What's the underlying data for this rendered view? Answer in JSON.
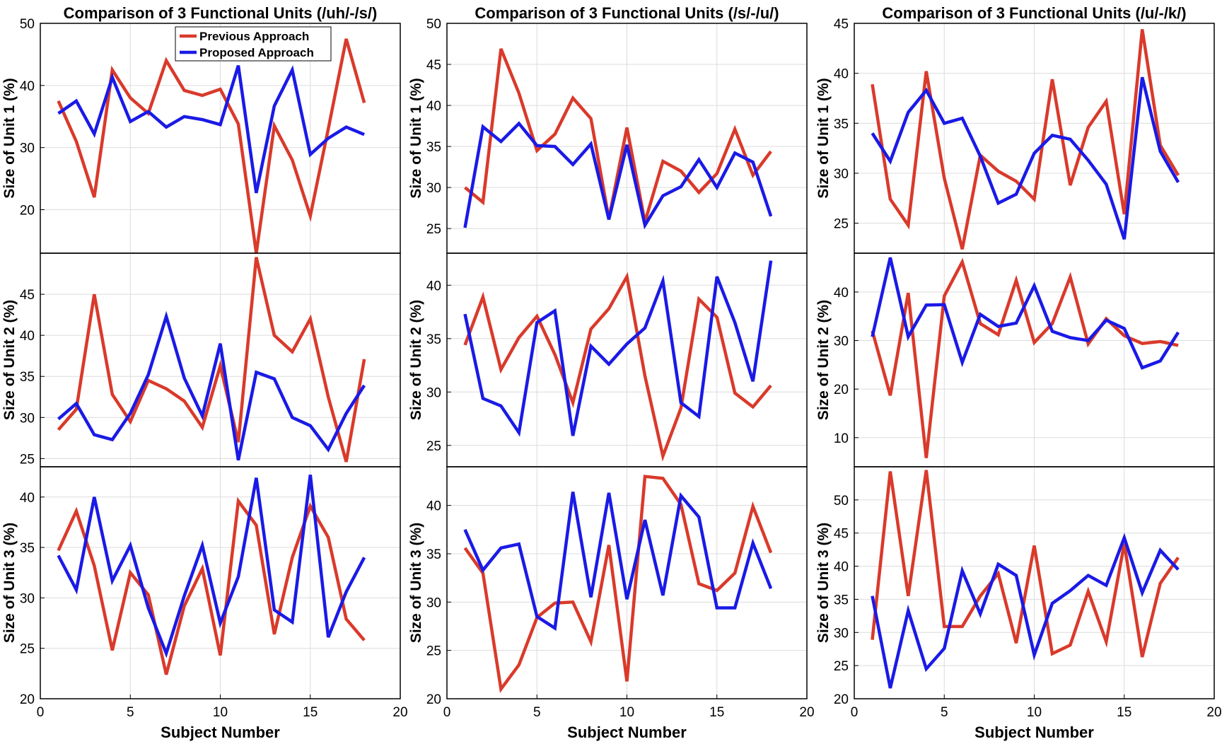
{
  "colors": {
    "previous": "#d93a2b",
    "proposed": "#1a1ae6"
  },
  "chart_data": [
    {
      "type": "line",
      "title": "Comparison of 3 Functional Units (/uh/-/s/)",
      "xlabel": "Subject Number",
      "xlim": [
        0,
        20
      ],
      "xticks": [
        0,
        5,
        10,
        15,
        20
      ],
      "legend": {
        "location": "top-center",
        "entries": [
          "Previous Approach",
          "Proposed Approach"
        ]
      },
      "panels": [
        {
          "ylabel": "Size of Unit 1 (%)",
          "ylim": [
            13,
            50
          ],
          "yticks": [
            20,
            30,
            40,
            50
          ],
          "x": [
            1,
            2,
            3,
            4,
            5,
            6,
            7,
            8,
            9,
            10,
            11,
            12,
            13,
            14,
            15,
            16,
            17,
            18
          ],
          "series": [
            {
              "name": "Previous Approach",
              "values": [
                37.5,
                31,
                22,
                42.5,
                38,
                35.5,
                44,
                39.2,
                38.4,
                39.4,
                33.8,
                13,
                33.5,
                28,
                19,
                33,
                47.5,
                37.2
              ]
            },
            {
              "name": "Proposed Approach",
              "values": [
                35.5,
                37.5,
                32.2,
                41.3,
                34.2,
                35.8,
                33.3,
                35,
                34.5,
                33.7,
                43.2,
                22.7,
                36.7,
                42.5,
                28.9,
                31.5,
                33.3,
                32.1
              ]
            }
          ]
        },
        {
          "ylabel": "Size of Unit 2 (%)",
          "ylim": [
            24,
            50
          ],
          "yticks": [
            25,
            30,
            35,
            40,
            45
          ],
          "x": [
            1,
            2,
            3,
            4,
            5,
            6,
            7,
            8,
            9,
            10,
            11,
            12,
            13,
            14,
            15,
            16,
            17,
            18
          ],
          "series": [
            {
              "name": "Previous Approach",
              "values": [
                28.5,
                31,
                45,
                32.8,
                29.5,
                34.5,
                33.5,
                32,
                28.8,
                36.3,
                27,
                49.5,
                40,
                38,
                42,
                32.5,
                24.6,
                37.1
              ]
            },
            {
              "name": "Proposed Approach",
              "values": [
                29.8,
                31.7,
                27.9,
                27.3,
                30.5,
                35.2,
                42.3,
                34.8,
                30.2,
                39,
                24.8,
                35.5,
                34.7,
                30,
                29,
                26.1,
                30.5,
                33.9
              ]
            }
          ]
        },
        {
          "ylabel": "Size of Unit 3 (%)",
          "ylim": [
            20,
            43
          ],
          "yticks": [
            20,
            25,
            30,
            35,
            40
          ],
          "x": [
            1,
            2,
            3,
            4,
            5,
            6,
            7,
            8,
            9,
            10,
            11,
            12,
            13,
            14,
            15,
            16,
            17,
            18
          ],
          "series": [
            {
              "name": "Previous Approach",
              "values": [
                34.7,
                38.6,
                33.2,
                24.8,
                32.5,
                30.3,
                22.4,
                29.2,
                32.9,
                24.3,
                39.6,
                37.2,
                26.4,
                34,
                39.1,
                36,
                27.9,
                25.8
              ]
            },
            {
              "name": "Proposed Approach",
              "values": [
                34.2,
                30.8,
                40,
                31.7,
                35.2,
                29,
                24.5,
                30.2,
                35.2,
                27.5,
                32.1,
                41.9,
                28.8,
                27.6,
                42.2,
                26.1,
                30.6,
                34
              ]
            }
          ]
        }
      ]
    },
    {
      "type": "line",
      "title": "Comparison of 3 Functional Units (/s/-/u/)",
      "xlabel": "Subject Number",
      "xlim": [
        0,
        20
      ],
      "xticks": [
        0,
        5,
        10,
        15,
        20
      ],
      "panels": [
        {
          "ylabel": "Size of Unit 1 (%)",
          "ylim": [
            22,
            50
          ],
          "yticks": [
            25,
            30,
            35,
            40,
            45,
            50
          ],
          "x": [
            1,
            2,
            3,
            4,
            5,
            6,
            7,
            8,
            9,
            10,
            11,
            12,
            13,
            14,
            15,
            16,
            17,
            18
          ],
          "series": [
            {
              "name": "Previous Approach",
              "values": [
                30,
                28.2,
                46.9,
                41.5,
                34.5,
                36.5,
                40.9,
                38.4,
                26.2,
                37.3,
                25.8,
                33.2,
                32,
                29.4,
                31.7,
                37.1,
                31.5,
                34.4
              ]
            },
            {
              "name": "Proposed Approach",
              "values": [
                25.1,
                37.4,
                35.6,
                37.8,
                35.1,
                35,
                32.8,
                35.3,
                26.1,
                35.2,
                25.4,
                29,
                30.1,
                33.4,
                30,
                34.2,
                33.1,
                26.5
              ]
            }
          ]
        },
        {
          "ylabel": "Size of Unit 2 (%)",
          "ylim": [
            23,
            43
          ],
          "yticks": [
            25,
            30,
            35,
            40
          ],
          "x": [
            1,
            2,
            3,
            4,
            5,
            6,
            7,
            8,
            9,
            10,
            11,
            12,
            13,
            14,
            15,
            16,
            17,
            18
          ],
          "series": [
            {
              "name": "Previous Approach",
              "values": [
                34.4,
                38.9,
                32.1,
                35.1,
                37.1,
                33.5,
                29,
                35.9,
                37.8,
                40.8,
                31.5,
                24,
                28.5,
                38.7,
                37,
                29.9,
                28.6,
                30.6
              ]
            },
            {
              "name": "Proposed Approach",
              "values": [
                37.3,
                29.4,
                28.7,
                26.2,
                36.5,
                37.6,
                25.9,
                34.3,
                32.6,
                34.5,
                36,
                40.4,
                29,
                27.7,
                40.8,
                36.5,
                31,
                42.3
              ]
            }
          ]
        },
        {
          "ylabel": "Size of Unit 3 (%)",
          "ylim": [
            20,
            44
          ],
          "yticks": [
            20,
            25,
            30,
            35,
            40
          ],
          "x": [
            1,
            2,
            3,
            4,
            5,
            6,
            7,
            8,
            9,
            10,
            11,
            12,
            13,
            14,
            15,
            16,
            17,
            18
          ],
          "series": [
            {
              "name": "Previous Approach",
              "values": [
                35.6,
                33,
                21,
                23.5,
                28.4,
                29.9,
                30,
                25.9,
                35.9,
                21.8,
                43,
                42.8,
                40.1,
                31.9,
                31.2,
                33,
                39.9,
                35.1
              ]
            },
            {
              "name": "Proposed Approach",
              "values": [
                37.5,
                33.3,
                35.6,
                36,
                28.5,
                27.3,
                41.4,
                30.5,
                41.3,
                30.3,
                38.5,
                30.7,
                41,
                38.8,
                29.4,
                29.4,
                36.1,
                31.4
              ]
            }
          ]
        }
      ]
    },
    {
      "type": "line",
      "title": "Comparison of 3 Functional Units (/u/-/k/)",
      "xlabel": "Subject Number",
      "xlim": [
        0,
        20
      ],
      "xticks": [
        0,
        5,
        10,
        15,
        20
      ],
      "panels": [
        {
          "ylabel": "Size of Unit 1 (%)",
          "ylim": [
            22,
            45
          ],
          "yticks": [
            25,
            30,
            35,
            40,
            45
          ],
          "x": [
            1,
            2,
            3,
            4,
            5,
            6,
            7,
            8,
            9,
            10,
            11,
            12,
            13,
            14,
            15,
            16,
            17,
            18
          ],
          "series": [
            {
              "name": "Previous Approach",
              "values": [
                38.9,
                27.4,
                24.8,
                40.2,
                29.5,
                22.4,
                31.8,
                30.2,
                29.2,
                27.4,
                39.4,
                28.8,
                34.6,
                37.2,
                25.9,
                44.4,
                32.8,
                29.8
              ]
            },
            {
              "name": "Proposed Approach",
              "values": [
                34,
                31.2,
                36.1,
                38.3,
                35,
                35.5,
                31.7,
                27,
                27.9,
                32,
                33.8,
                33.4,
                31.3,
                28.9,
                23.4,
                39.6,
                32.2,
                29.1
              ]
            }
          ]
        },
        {
          "ylabel": "Size of Unit 2 (%)",
          "ylim": [
            4,
            48
          ],
          "yticks": [
            10,
            20,
            30,
            40
          ],
          "x": [
            1,
            2,
            3,
            4,
            5,
            6,
            7,
            8,
            9,
            10,
            11,
            12,
            13,
            14,
            15,
            16,
            17,
            18
          ],
          "series": [
            {
              "name": "Previous Approach",
              "values": [
                32,
                18.7,
                39.8,
                5.8,
                39.2,
                46.2,
                33.5,
                31.2,
                42.4,
                29.6,
                33.5,
                43.1,
                29.3,
                34.5,
                31,
                29.4,
                29.8,
                29
              ]
            },
            {
              "name": "Proposed Approach",
              "values": [
                30.8,
                47.1,
                30.8,
                37.3,
                37.4,
                25.5,
                35.4,
                32.9,
                33.6,
                41.3,
                31.9,
                30.6,
                30,
                34.2,
                32.5,
                24.4,
                25.8,
                31.7
              ]
            }
          ]
        },
        {
          "ylabel": "Size of Unit 3 (%)",
          "ylim": [
            20,
            55
          ],
          "yticks": [
            20,
            25,
            30,
            35,
            40,
            45,
            50
          ],
          "x": [
            1,
            2,
            3,
            4,
            5,
            6,
            7,
            8,
            9,
            10,
            11,
            12,
            13,
            14,
            15,
            16,
            17,
            18
          ],
          "series": [
            {
              "name": "Previous Approach",
              "values": [
                28.9,
                54.3,
                35.5,
                54.5,
                30.9,
                30.9,
                35.5,
                38.9,
                28.4,
                43.1,
                26.8,
                28.1,
                36.2,
                28.6,
                43.4,
                26.3,
                37.4,
                41.3
              ]
            },
            {
              "name": "Proposed Approach",
              "values": [
                35.5,
                21.6,
                33.3,
                24.5,
                27.6,
                39.3,
                32.8,
                40.3,
                38.6,
                26.6,
                34.4,
                36.3,
                38.6,
                37.1,
                44.3,
                36,
                42.4,
                39.5
              ]
            }
          ]
        }
      ]
    }
  ]
}
